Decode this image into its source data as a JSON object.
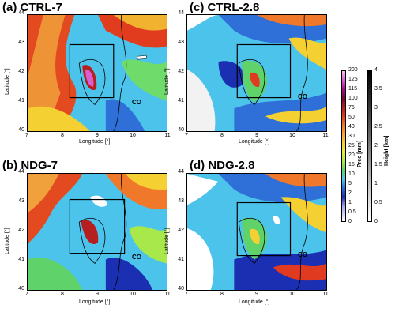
{
  "panels": [
    {
      "title": "(a) CTRL-7",
      "ylabel": "Latitude [°]",
      "xlabel": "Longitude [°]",
      "co": "CO"
    },
    {
      "title": "(c) CTRL-2.8",
      "ylabel": "Latitude [°]",
      "xlabel": "Longitude [°]",
      "co": "CO"
    },
    {
      "title": "(b) NDG-7",
      "ylabel": "Latitude [°]",
      "xlabel": "Longitude [°]",
      "co": "CO"
    },
    {
      "title": "(d) NDG-2.8",
      "ylabel": "Latitude [°]",
      "xlabel": "Longitude [°]",
      "co": "CO"
    }
  ],
  "ticks": {
    "y": [
      "44",
      "43",
      "42",
      "41",
      "40"
    ],
    "x": [
      "7",
      "8",
      "9",
      "10",
      "11"
    ]
  },
  "colorbars": {
    "prec_title": "Prec [mm]",
    "prec_ticks": [
      "200",
      "125",
      "115",
      "100",
      "75",
      "50",
      "40",
      "30",
      "25",
      "20",
      "15",
      "10",
      "5",
      "2",
      "1",
      "0.5",
      "0"
    ],
    "prec_colors": [
      "#f6c8f2",
      "#d85fd2",
      "#a4108e",
      "#6f0a3c",
      "#b51f1f",
      "#e03b20",
      "#f0782b",
      "#f7a636",
      "#f4d033",
      "#e6f03a",
      "#a8e84a",
      "#5fd36a",
      "#55c8e8",
      "#2f6fd8",
      "#1b2fb2",
      "#9fa7ef",
      "#ffffff"
    ],
    "height_title": "Height [km]",
    "height_ticks": [
      "4",
      "3.5",
      "3",
      "2.5",
      "2",
      "1.5",
      "1",
      "0.5",
      "0"
    ]
  },
  "chart_data": [
    {
      "type": "heatmap",
      "title": "(a) CTRL-7",
      "xlabel": "Longitude [°]",
      "ylabel": "Latitude [°]",
      "xlim": [
        7,
        11
      ],
      "ylim": [
        40,
        44
      ],
      "box": {
        "lon": [
          8.5,
          9.8
        ],
        "lat": [
          41.3,
          43.0
        ]
      }
    },
    {
      "type": "heatmap",
      "title": "(c) CTRL-2.8",
      "xlabel": "Longitude [°]",
      "ylabel": "Latitude [°]",
      "xlim": [
        7,
        11
      ],
      "ylim": [
        40,
        44
      ],
      "box": {
        "lon": [
          8.5,
          9.8
        ],
        "lat": [
          41.3,
          43.0
        ]
      }
    },
    {
      "type": "heatmap",
      "title": "(b) NDG-7",
      "xlabel": "Longitude [°]",
      "ylabel": "Latitude [°]",
      "xlim": [
        7,
        11
      ],
      "ylim": [
        40,
        44
      ],
      "box": {
        "lon": [
          8.5,
          9.8
        ],
        "lat": [
          41.3,
          43.0
        ]
      }
    },
    {
      "type": "heatmap",
      "title": "(d) NDG-2.8",
      "xlabel": "Longitude [°]",
      "ylabel": "Latitude [°]",
      "xlim": [
        7,
        11
      ],
      "ylim": [
        40,
        44
      ],
      "box": {
        "lon": [
          8.5,
          9.8
        ],
        "lat": [
          41.3,
          43.0
        ]
      }
    }
  ]
}
